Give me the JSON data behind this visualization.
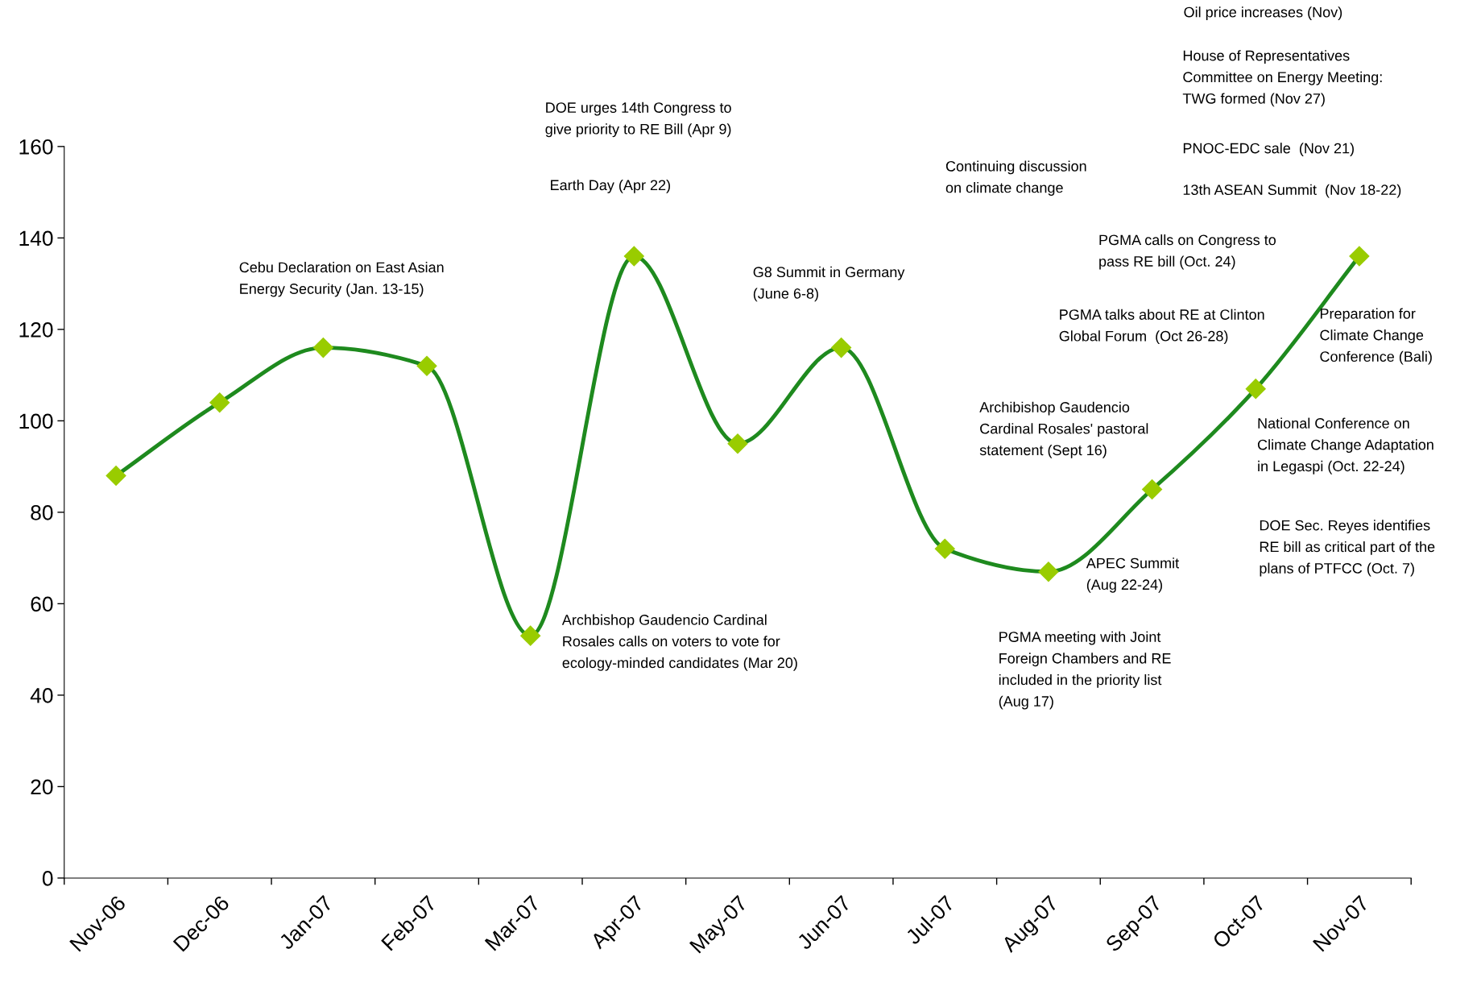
{
  "chart_data": {
    "type": "line",
    "categories": [
      "Nov-06",
      "Dec-06",
      "Jan-07",
      "Feb-07",
      "Mar-07",
      "Apr-07",
      "May-07",
      "Jun-07",
      "Jul-07",
      "Aug-07",
      "Sep-07",
      "Oct-07",
      "Nov-07"
    ],
    "values": [
      88,
      104,
      116,
      112,
      53,
      136,
      95,
      116,
      72,
      67,
      85,
      107,
      136
    ],
    "color": "#1e8a1e",
    "colors": [
      "#99cc00",
      "#99cc00",
      "#99cc00",
      "#99cc00",
      "#99cc00",
      "#99cc00",
      "#99cc00",
      "#99cc00",
      "#99cc00",
      "#99cc00",
      "#99cc00",
      "#99cc00",
      "#99cc00"
    ],
    "marker": "diamond",
    "line_style": "solid",
    "grid": false,
    "legend": false,
    "ylim": [
      0,
      160
    ],
    "yticks": [
      0,
      20,
      40,
      60,
      80,
      100,
      120,
      140,
      160
    ],
    "annotations": [
      "Cebu Declaration on East Asian\nEnergy Security (Jan. 13-15)",
      "DOE urges 14th Congress to\ngive priority to RE Bill (Apr 9)",
      "Earth Day (Apr 22)",
      "Archbishop Gaudencio Cardinal\nRosales calls on voters to vote for\necology-minded candidates (Mar 20)",
      "G8 Summit in Germany\n(June 6-8)",
      "Continuing discussion\non climate change",
      "Archibishop Gaudencio\nCardinal Rosales' pastoral\nstatement (Sept 16)",
      "APEC Summit\n(Aug 22-24)",
      "PGMA meeting with Joint\nForeign Chambers and RE\nincluded in the priority list\n(Aug 17)",
      "PGMA calls on Congress to\npass RE bill (Oct. 24)",
      "PGMA talks about RE at Clinton\nGlobal Forum  (Oct 26-28)",
      "National Conference on\nClimate Change Adaptation\nin Legaspi (Oct. 22-24)",
      "DOE Sec. Reyes identifies\nRE bill as critical part of the\nplans of PTFCC (Oct. 7)",
      "Preparation for\nClimate Change\nConference (Bali)",
      "Oil price increases (Nov)",
      "House of Representatives\nCommittee on Energy Meeting:\nTWG formed (Nov 27)",
      "PNOC-EDC sale  (Nov 21)",
      "13th ASEAN Summit  (Nov 18-22)"
    ]
  }
}
